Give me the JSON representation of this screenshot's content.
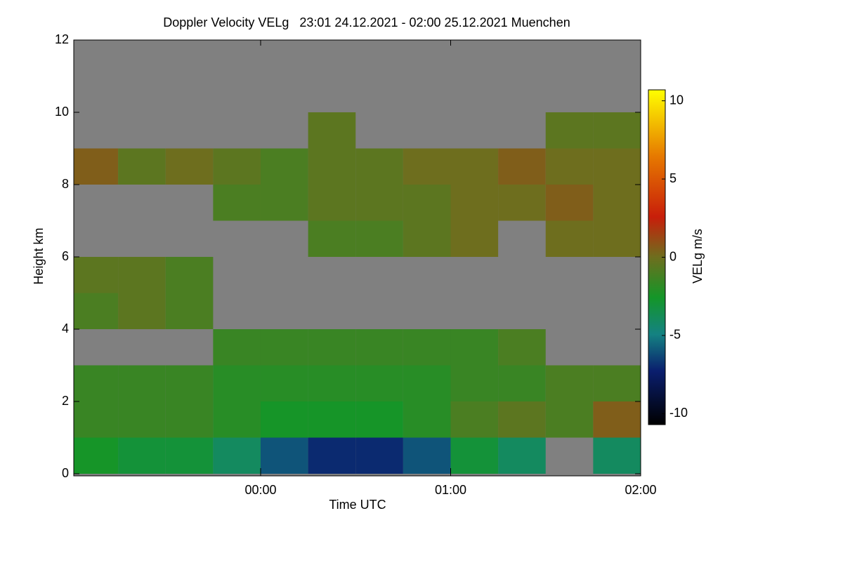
{
  "chart_data": {
    "type": "heatmap",
    "title": "Doppler Velocity VELg   23:01 24.12.2021 - 02:00 25.12.2021 Muenchen",
    "x_label": "Time UTC",
    "y_label": "Height km",
    "colorbar_label": "VELg m/s",
    "xlim": [
      23.0167,
      26
    ],
    "xticks": [
      {
        "value": 24,
        "label": "00:00"
      },
      {
        "value": 25,
        "label": "01:00"
      },
      {
        "value": 26,
        "label": "02:00"
      }
    ],
    "ylim": [
      0,
      12
    ],
    "yticks": [
      0,
      2,
      4,
      6,
      8,
      10,
      12
    ],
    "zlim": [
      -10.7,
      10.7
    ],
    "zticks": [
      -10,
      -5,
      0,
      5,
      10
    ],
    "xbins": [
      23,
      23.25,
      23.5,
      23.75,
      24,
      24.25,
      24.5,
      24.75,
      25,
      25.25,
      25.5,
      25.75,
      26
    ],
    "ybins": [
      0,
      1,
      2,
      3,
      4,
      5,
      6,
      7,
      8,
      9,
      10,
      11,
      12
    ],
    "values": [
      [
        -2.5,
        -3,
        -3,
        -4,
        -6,
        -7,
        -7,
        -6,
        -3,
        -4,
        null,
        -4
      ],
      [
        -1.5,
        -1.5,
        -1.5,
        -2,
        -2.5,
        -2.5,
        -2.5,
        -2,
        -1,
        -0.5,
        -1,
        0.5
      ],
      [
        -1.5,
        -1.5,
        -1.5,
        -2,
        -2,
        -2,
        -2,
        -2,
        -1.5,
        -1.5,
        -1,
        -1
      ],
      [
        null,
        null,
        null,
        -1.5,
        -1.5,
        -1.5,
        -1.5,
        -1.5,
        -1.5,
        -1,
        null,
        null
      ],
      [
        -1,
        -0.5,
        -1,
        null,
        null,
        null,
        null,
        null,
        null,
        null,
        null,
        null
      ],
      [
        -0.5,
        -0.5,
        -1,
        null,
        null,
        null,
        null,
        null,
        null,
        null,
        null,
        null
      ],
      [
        null,
        null,
        null,
        null,
        null,
        -1,
        -1,
        -0.5,
        0,
        null,
        0,
        0
      ],
      [
        null,
        null,
        null,
        -1,
        -1,
        -0.5,
        -0.5,
        -0.5,
        0,
        0,
        0.5,
        0
      ],
      [
        0.5,
        -0.5,
        0,
        -0.5,
        -1,
        -0.5,
        -0.5,
        0,
        0,
        0.5,
        0,
        0
      ],
      [
        null,
        null,
        null,
        null,
        null,
        -0.5,
        null,
        null,
        null,
        null,
        -0.5,
        -0.5
      ],
      [
        null,
        null,
        null,
        null,
        null,
        null,
        null,
        null,
        null,
        null,
        null,
        null
      ],
      [
        null,
        null,
        null,
        null,
        null,
        null,
        null,
        null,
        null,
        null,
        null,
        null
      ]
    ]
  }
}
